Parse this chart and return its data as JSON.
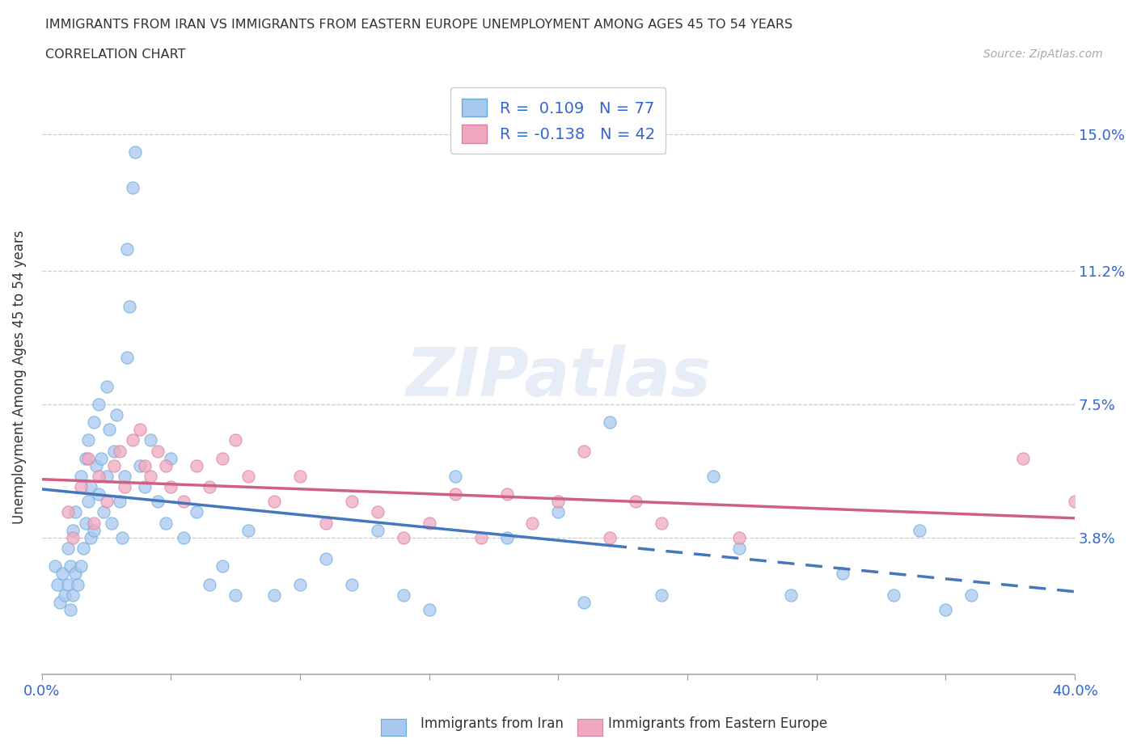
{
  "title_line1": "IMMIGRANTS FROM IRAN VS IMMIGRANTS FROM EASTERN EUROPE UNEMPLOYMENT AMONG AGES 45 TO 54 YEARS",
  "title_line2": "CORRELATION CHART",
  "source_text": "Source: ZipAtlas.com",
  "ylabel": "Unemployment Among Ages 45 to 54 years",
  "xmin": 0.0,
  "xmax": 0.4,
  "ymin": 0.0,
  "ymax": 0.165,
  "ytick_positions": [
    0.038,
    0.075,
    0.112,
    0.15
  ],
  "ytick_labels": [
    "3.8%",
    "7.5%",
    "11.2%",
    "15.0%"
  ],
  "iran_R": 0.109,
  "iran_N": 77,
  "ee_R": -0.138,
  "ee_N": 42,
  "iran_color": "#a8c8f0",
  "iran_edge_color": "#6aaad8",
  "iran_line_color": "#4477bb",
  "ee_color": "#f0a8c0",
  "ee_edge_color": "#d880a0",
  "ee_line_color": "#d06080",
  "watermark": "ZIPatlas",
  "background_color": "#ffffff",
  "iran_x": [
    0.005,
    0.006,
    0.007,
    0.008,
    0.009,
    0.01,
    0.01,
    0.011,
    0.011,
    0.012,
    0.012,
    0.013,
    0.013,
    0.014,
    0.015,
    0.015,
    0.016,
    0.017,
    0.017,
    0.018,
    0.018,
    0.019,
    0.019,
    0.02,
    0.02,
    0.021,
    0.022,
    0.022,
    0.023,
    0.024,
    0.025,
    0.025,
    0.026,
    0.027,
    0.028,
    0.029,
    0.03,
    0.031,
    0.032,
    0.033,
    0.033,
    0.034,
    0.035,
    0.036,
    0.038,
    0.04,
    0.042,
    0.045,
    0.048,
    0.05,
    0.055,
    0.06,
    0.065,
    0.07,
    0.075,
    0.08,
    0.09,
    0.1,
    0.11,
    0.12,
    0.13,
    0.14,
    0.15,
    0.16,
    0.18,
    0.2,
    0.21,
    0.22,
    0.24,
    0.26,
    0.27,
    0.29,
    0.31,
    0.33,
    0.34,
    0.35,
    0.36
  ],
  "iran_y": [
    0.03,
    0.025,
    0.02,
    0.028,
    0.022,
    0.025,
    0.035,
    0.018,
    0.03,
    0.022,
    0.04,
    0.028,
    0.045,
    0.025,
    0.03,
    0.055,
    0.035,
    0.042,
    0.06,
    0.048,
    0.065,
    0.038,
    0.052,
    0.04,
    0.07,
    0.058,
    0.05,
    0.075,
    0.06,
    0.045,
    0.055,
    0.08,
    0.068,
    0.042,
    0.062,
    0.072,
    0.048,
    0.038,
    0.055,
    0.088,
    0.118,
    0.102,
    0.135,
    0.145,
    0.058,
    0.052,
    0.065,
    0.048,
    0.042,
    0.06,
    0.038,
    0.045,
    0.025,
    0.03,
    0.022,
    0.04,
    0.022,
    0.025,
    0.032,
    0.025,
    0.04,
    0.022,
    0.018,
    0.055,
    0.038,
    0.045,
    0.02,
    0.07,
    0.022,
    0.055,
    0.035,
    0.022,
    0.028,
    0.022,
    0.04,
    0.018,
    0.022
  ],
  "ee_x": [
    0.01,
    0.012,
    0.015,
    0.018,
    0.02,
    0.022,
    0.025,
    0.028,
    0.03,
    0.032,
    0.035,
    0.038,
    0.04,
    0.042,
    0.045,
    0.048,
    0.05,
    0.055,
    0.06,
    0.065,
    0.07,
    0.075,
    0.08,
    0.09,
    0.1,
    0.11,
    0.12,
    0.13,
    0.14,
    0.15,
    0.16,
    0.17,
    0.18,
    0.19,
    0.2,
    0.21,
    0.22,
    0.23,
    0.24,
    0.27,
    0.38,
    0.4
  ],
  "ee_y": [
    0.045,
    0.038,
    0.052,
    0.06,
    0.042,
    0.055,
    0.048,
    0.058,
    0.062,
    0.052,
    0.065,
    0.068,
    0.058,
    0.055,
    0.062,
    0.058,
    0.052,
    0.048,
    0.058,
    0.052,
    0.06,
    0.065,
    0.055,
    0.048,
    0.055,
    0.042,
    0.048,
    0.045,
    0.038,
    0.042,
    0.05,
    0.038,
    0.05,
    0.042,
    0.048,
    0.062,
    0.038,
    0.048,
    0.042,
    0.038,
    0.06,
    0.048
  ],
  "iran_line_solid_end": 0.22,
  "iran_line_dashed_start": 0.22,
  "iran_line_end": 0.4
}
